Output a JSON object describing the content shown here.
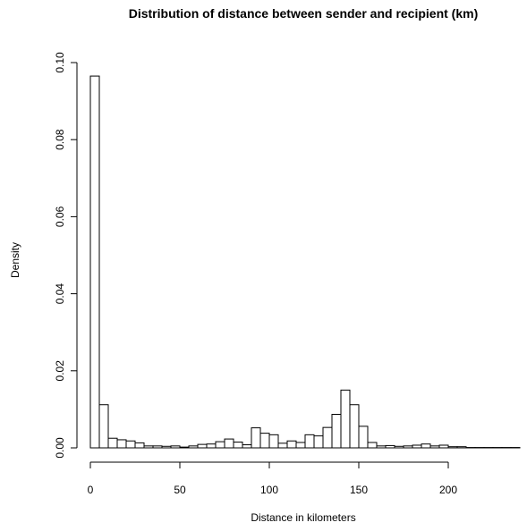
{
  "chart_data": {
    "type": "bar",
    "title": "Distribution of distance between sender and recipient (km)",
    "xlabel": "Distance in kilometers",
    "ylabel": "Density",
    "bin_width": 5,
    "xlim": [
      0,
      240
    ],
    "ylim": [
      0,
      0.1
    ],
    "x_ticks": [
      0,
      50,
      100,
      150,
      200
    ],
    "x_tick_labels": [
      "0",
      "50",
      "100",
      "150",
      "200"
    ],
    "y_ticks": [
      0,
      0.02,
      0.04,
      0.06,
      0.08,
      0.1
    ],
    "y_tick_labels": [
      "0.00",
      "0.02",
      "0.04",
      "0.06",
      "0.08",
      "0.10"
    ],
    "bin_starts": [
      0,
      5,
      10,
      15,
      20,
      25,
      30,
      35,
      40,
      45,
      50,
      55,
      60,
      65,
      70,
      75,
      80,
      85,
      90,
      95,
      100,
      105,
      110,
      115,
      120,
      125,
      130,
      135,
      140,
      145,
      150,
      155,
      160,
      165,
      170,
      175,
      180,
      185,
      190,
      195,
      200,
      205,
      210,
      215,
      220,
      225,
      230,
      235
    ],
    "values": [
      0.0965,
      0.0112,
      0.0025,
      0.0021,
      0.0018,
      0.0013,
      0.0005,
      0.0005,
      0.0004,
      0.0005,
      0.0002,
      0.0005,
      0.0009,
      0.001,
      0.0016,
      0.0023,
      0.0015,
      0.0008,
      0.0052,
      0.0038,
      0.0034,
      0.0012,
      0.0018,
      0.0014,
      0.0034,
      0.0031,
      0.0053,
      0.0087,
      0.015,
      0.0112,
      0.0056,
      0.0014,
      0.0005,
      0.0006,
      0.0004,
      0.0005,
      0.0007,
      0.001,
      0.0005,
      0.0007,
      0.0003,
      0.0003,
      0.0001,
      0.0001,
      0.0001,
      0.0001,
      0.0001,
      0.0001
    ]
  }
}
